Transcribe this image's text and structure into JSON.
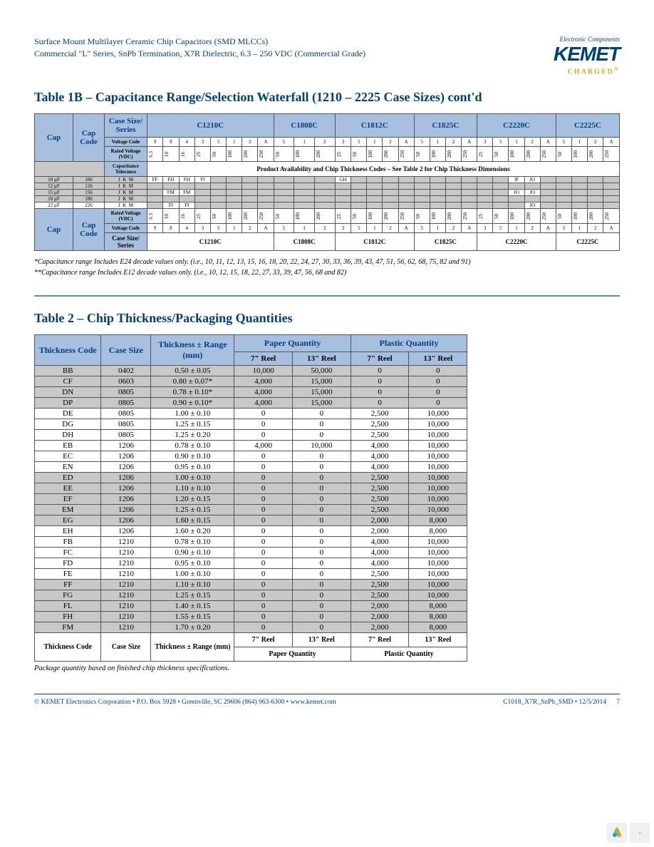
{
  "header": {
    "line1": "Surface Mount Multilayer Ceramic Chip Capacitors (SMD MLCCs)",
    "line2": "Commercial \"L\" Series, SnPb Termination, X7R Dielectric, 6.3 – 250 VDC (Commercial Grade)",
    "logo_text": "KEMET",
    "tagline_top": "Electronic Components",
    "tagline_bottom": "CHARGED"
  },
  "table1b": {
    "title": "Table 1B – Capacitance Range/Selection Waterfall (1210 – 2225 Case Sizes) cont'd",
    "top_labels": {
      "cap": "Cap",
      "cap_code": "Cap Code",
      "case_series": "Case Size/ Series"
    },
    "row_labels": {
      "voltage_code": "Voltage Code",
      "rated_voltage": "Rated Voltage (VDC)",
      "cap_tol": "Capacitance Tolerance"
    },
    "factories": [
      "C1210C",
      "C1808C",
      "C1812C",
      "C1825C",
      "C2220C",
      "C2225C"
    ],
    "vc_1210": [
      "9",
      "8",
      "4",
      "3",
      "5",
      "1",
      "2",
      "A"
    ],
    "rv_1210": [
      "6.3",
      "10",
      "16",
      "25",
      "50",
      "100",
      "200",
      "250"
    ],
    "vc_1808": [
      "5",
      "1",
      "2"
    ],
    "rv_1808": [
      "50",
      "100",
      "200"
    ],
    "vc_1812": [
      "3",
      "5",
      "1",
      "2",
      "A"
    ],
    "rv_1812": [
      "25",
      "50",
      "100",
      "200",
      "250"
    ],
    "vc_1825": [
      "5",
      "1",
      "2",
      "A"
    ],
    "rv_1825": [
      "50",
      "100",
      "200",
      "250"
    ],
    "vc_2220": [
      "3",
      "5",
      "1",
      "2",
      "A"
    ],
    "rv_2220": [
      "25",
      "50",
      "100",
      "200",
      "250"
    ],
    "vc_2225": [
      "5",
      "1",
      "2",
      "A"
    ],
    "rv_2225": [
      "50",
      "100",
      "200",
      "250"
    ],
    "banner": "Product Availability and Chip Thickness Codes – See Table 2 for Chip Thickness Dimensions",
    "rows": [
      {
        "cap": "10 µF",
        "code": "106",
        "tol": [
          "J",
          "K",
          "M"
        ],
        "c1210": [
          "FF",
          "FH",
          "FH",
          "FI",
          ""
        ],
        "c1812": [
          "GH"
        ],
        "c2220": [
          "",
          "",
          "JF",
          "JO"
        ]
      },
      {
        "cap": "12 µF",
        "code": "126",
        "tol": [
          "J",
          "K",
          "M"
        ],
        "c1210": [],
        "c2220": []
      },
      {
        "cap": "15 µF",
        "code": "156",
        "tol": [
          "J",
          "K",
          "M"
        ],
        "c1210": [
          "",
          "FM",
          "FM"
        ],
        "c2220": [
          "",
          "",
          "JO",
          "JO"
        ]
      },
      {
        "cap": "18 µF",
        "code": "186",
        "tol": [
          "J",
          "K",
          "M"
        ],
        "c1210": [],
        "c2220": []
      },
      {
        "cap": "22 µF",
        "code": "226",
        "tol": [
          "J",
          "K",
          "M"
        ],
        "c1210": [
          "",
          "FI",
          "FI"
        ],
        "c2220": [
          "",
          "",
          "",
          "JO"
        ]
      }
    ],
    "footnote1": "*Capacitance range Includes E24 decade values only. (i.e., 10, 11, 12, 13, 15, 16, 18, 20, 22, 24, 27, 30, 33, 36, 39, 43, 47, 51, 56, 62, 68, 75, 82 and 91)",
    "footnote2": "**Capacitance range Includes E12 decade values only. (i.e., 10, 12, 15, 18, 22, 27, 33, 39, 47, 56, 68 and 82)"
  },
  "table2": {
    "title": "Table 2 – Chip Thickness/Packaging Quantities",
    "headers": {
      "thickness_code": "Thickness Code",
      "case_size": "Case Size",
      "thickness_range": "Thickness ± Range (mm)",
      "paper_q": "Paper Quantity",
      "plastic_q": "Plastic Quantity",
      "r7": "7\" Reel",
      "r13": "13\" Reel"
    },
    "rows": [
      [
        "BB",
        "0402",
        "0.50 ± 0.05",
        "10,000",
        "50,000",
        "0",
        "0",
        "g"
      ],
      [
        "CF",
        "0603",
        "0.80 ± 0.07*",
        "4,000",
        "15,000",
        "0",
        "0",
        "g"
      ],
      [
        "DN",
        "0805",
        "0.78 ± 0.10*",
        "4,000",
        "15,000",
        "0",
        "0",
        "g"
      ],
      [
        "DP",
        "0805",
        "0.90 ± 0.10*",
        "4,000",
        "15,000",
        "0",
        "0",
        "g"
      ],
      [
        "DE",
        "0805",
        "1.00 ± 0.10",
        "0",
        "0",
        "2,500",
        "10,000",
        "w"
      ],
      [
        "DG",
        "0805",
        "1.25 ± 0.15",
        "0",
        "0",
        "2,500",
        "10,000",
        "w"
      ],
      [
        "DH",
        "0805",
        "1.25 ± 0.20",
        "0",
        "0",
        "2,500",
        "10,000",
        "w"
      ],
      [
        "EB",
        "1206",
        "0.78 ± 0.10",
        "4,000",
        "10,000",
        "4,000",
        "10,000",
        "w"
      ],
      [
        "EC",
        "1206",
        "0.90 ± 0.10",
        "0",
        "0",
        "4,000",
        "10,000",
        "w"
      ],
      [
        "EN",
        "1206",
        "0.95 ± 0.10",
        "0",
        "0",
        "4,000",
        "10,000",
        "w"
      ],
      [
        "ED",
        "1206",
        "1.00 ± 0.10",
        "0",
        "0",
        "2,500",
        "10,000",
        "g"
      ],
      [
        "EE",
        "1206",
        "1.10 ± 0.10",
        "0",
        "0",
        "2,500",
        "10,000",
        "g"
      ],
      [
        "EF",
        "1206",
        "1.20 ± 0.15",
        "0",
        "0",
        "2,500",
        "10,000",
        "g"
      ],
      [
        "EM",
        "1206",
        "1.25 ± 0.15",
        "0",
        "0",
        "2,500",
        "10,000",
        "g"
      ],
      [
        "EG",
        "1206",
        "1.60 ± 0.15",
        "0",
        "0",
        "2,000",
        "8,000",
        "g"
      ],
      [
        "EH",
        "1206",
        "1.60 ± 0.20",
        "0",
        "0",
        "2,000",
        "8,000",
        "w"
      ],
      [
        "FB",
        "1210",
        "0.78 ± 0.10",
        "0",
        "0",
        "4,000",
        "10,000",
        "w"
      ],
      [
        "FC",
        "1210",
        "0.90 ± 0.10",
        "0",
        "0",
        "4,000",
        "10,000",
        "w"
      ],
      [
        "FD",
        "1210",
        "0.95 ± 0.10",
        "0",
        "0",
        "4,000",
        "10,000",
        "w"
      ],
      [
        "FE",
        "1210",
        "1.00 ± 0.10",
        "0",
        "0",
        "2,500",
        "10,000",
        "w"
      ],
      [
        "FF",
        "1210",
        "1.10 ± 0.10",
        "0",
        "0",
        "2,500",
        "10,000",
        "g"
      ],
      [
        "FG",
        "1210",
        "1.25 ± 0.15",
        "0",
        "0",
        "2,500",
        "10,000",
        "g"
      ],
      [
        "FL",
        "1210",
        "1.40 ± 0.15",
        "0",
        "0",
        "2,000",
        "8,000",
        "g"
      ],
      [
        "FH",
        "1210",
        "1.55 ± 0.15",
        "0",
        "0",
        "2,000",
        "8,000",
        "g"
      ],
      [
        "FM",
        "1210",
        "1.70 ± 0.20",
        "0",
        "0",
        "2,000",
        "8,000",
        "g"
      ]
    ],
    "note": "Package quantity based on finished chip thickness specifications."
  },
  "footer": {
    "left": "© KEMET Electronics Corporation • P.O. Box 5928 • Greenville, SC 29606 (864) 963-6300 • www.kemet.com",
    "right": "C1018_X7R_SnPb_SMD • 12/5/2014",
    "page": "7"
  }
}
